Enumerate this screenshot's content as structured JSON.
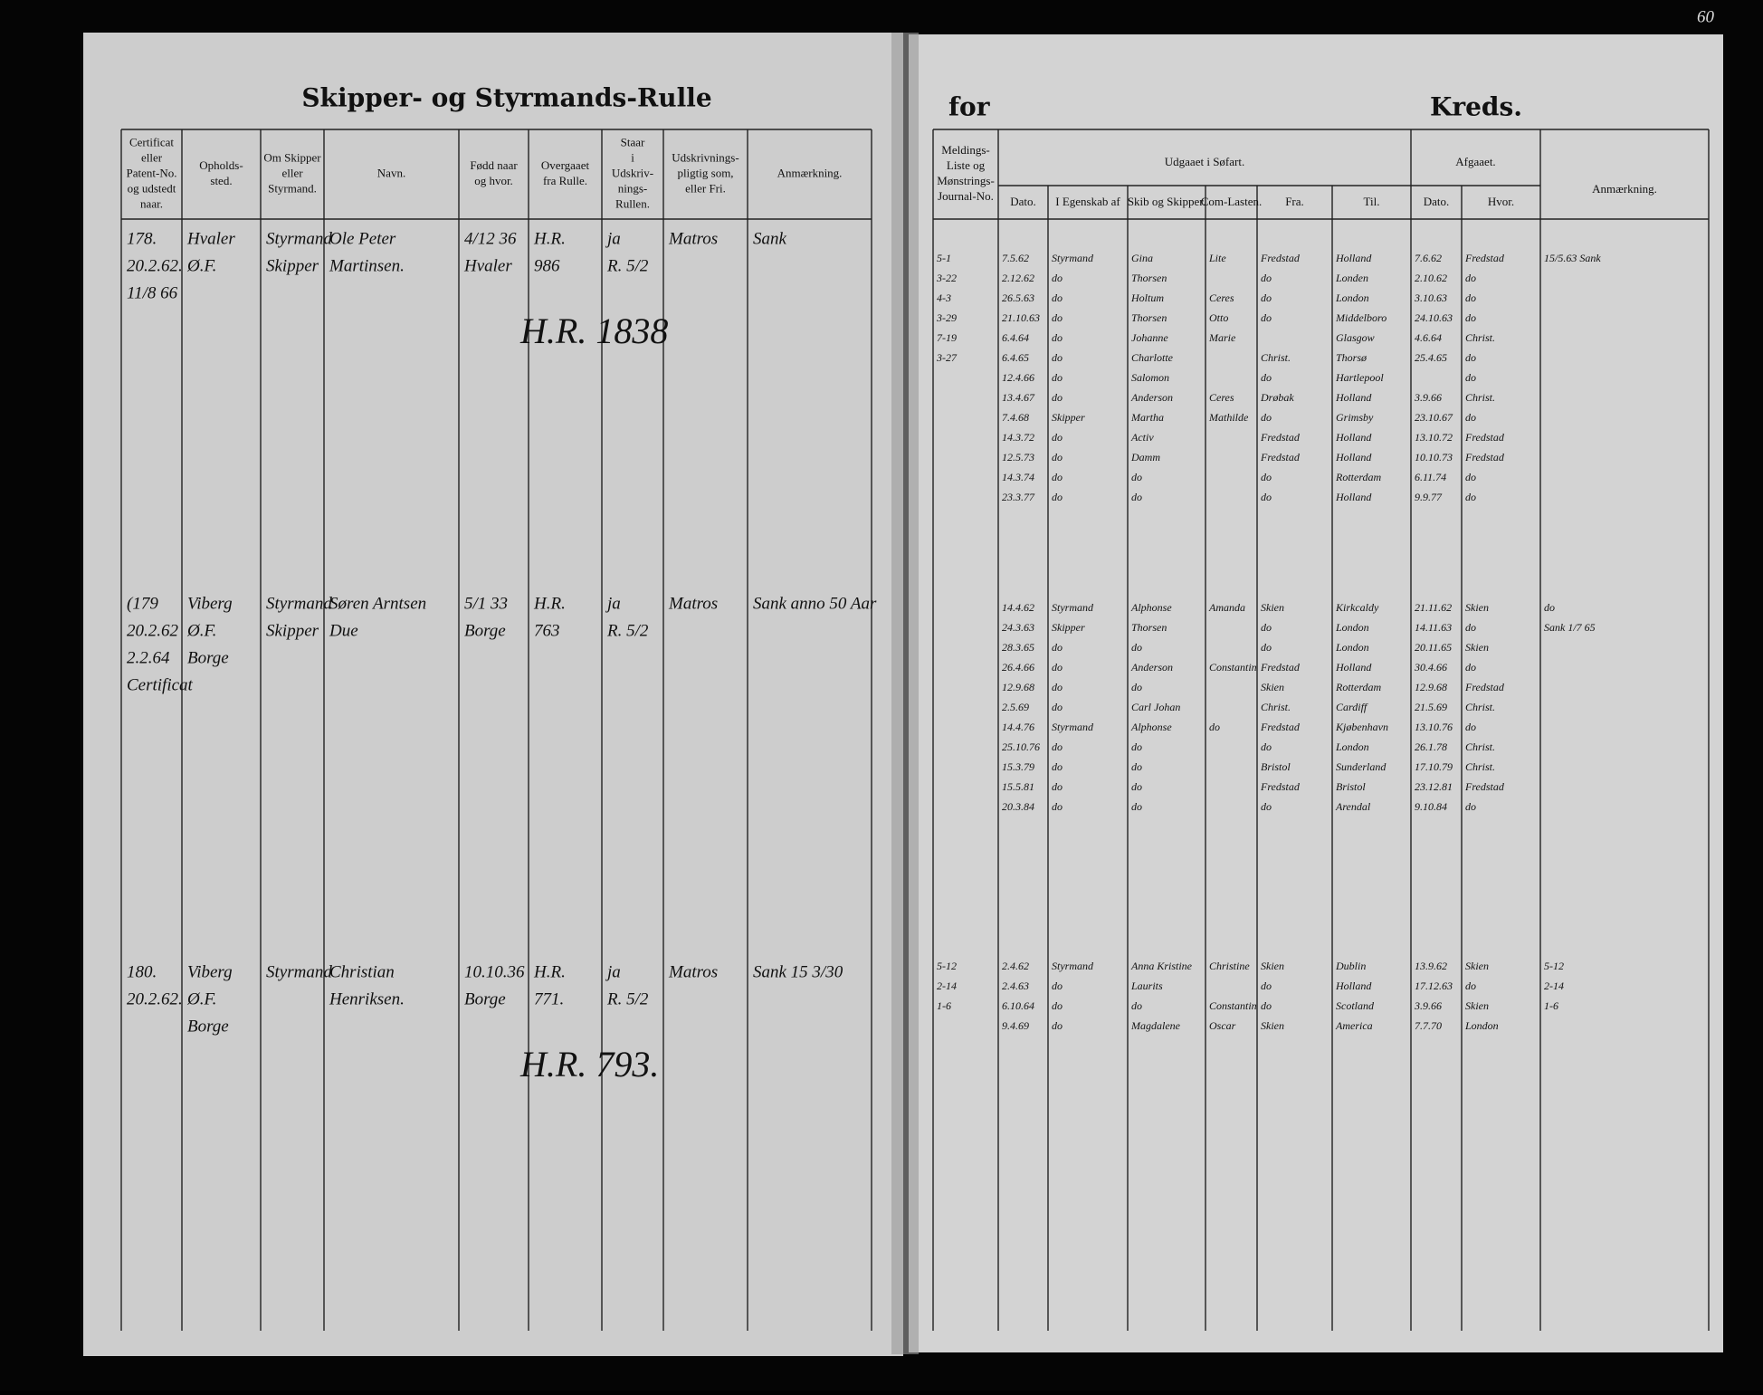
{
  "left_page": {
    "title": "Skipper- og Styrmands-Rulle",
    "columns": [
      [
        "Certificat",
        "eller",
        "Patent-No.",
        "og udstedt",
        "naar."
      ],
      [
        "Opholds-",
        "sted."
      ],
      [
        "Om Skipper",
        "eller",
        "Styrmand."
      ],
      [
        "Navn."
      ],
      [
        "Fødd naar",
        "og hvor."
      ],
      [
        "Overgaaet",
        "fra Rulle."
      ],
      [
        "Staar",
        "i",
        "Udskriv-",
        "nings-",
        "Rullen."
      ],
      [
        "Udskrivnings-",
        "pligtig som,",
        "eller Fri."
      ],
      [
        "Anmærkning."
      ]
    ],
    "entries": [
      {
        "cert": [
          "178.",
          "20.2.62.",
          "11/8 66"
        ],
        "opholdssted": [
          "Hvaler",
          "Ø.F."
        ],
        "stilling": [
          "Styrmand",
          "Skipper"
        ],
        "navn": [
          "Ole Peter",
          "Martinsen."
        ],
        "fodt": [
          "4/12 36",
          "Hvaler"
        ],
        "overgaaet": [
          "H.R.",
          "986"
        ],
        "udskrivning": [
          "ja",
          "R. 5/2"
        ],
        "pligtig": [
          "Matros"
        ],
        "anm": [
          "Sank"
        ],
        "stamp": "H.R. 1838"
      },
      {
        "cert": [
          "(179",
          "20.2.62",
          "2.2.64",
          "Certificat"
        ],
        "opholdssted": [
          "Viberg",
          "Ø.F.",
          "Borge"
        ],
        "stilling": [
          "Styrmand",
          "Skipper"
        ],
        "navn": [
          "Søren Arntsen",
          "Due"
        ],
        "fodt": [
          "5/1 33",
          "Borge"
        ],
        "overgaaet": [
          "H.R.",
          "763"
        ],
        "udskrivning": [
          "ja",
          "R. 5/2"
        ],
        "pligtig": [
          "Matros"
        ],
        "anm": [
          "Sank anno 50 Aar"
        ]
      },
      {
        "cert": [
          "180.",
          "20.2.62."
        ],
        "opholdssted": [
          "Viberg",
          "Ø.F.",
          "Borge"
        ],
        "stilling": [
          "Styrmand"
        ],
        "navn": [
          "Christian",
          "Henriksen."
        ],
        "fodt": [
          "10.10.36",
          "Borge"
        ],
        "overgaaet": [
          "H.R.",
          "771."
        ],
        "udskrivning": [
          "ja",
          "R. 5/2"
        ],
        "pligtig": [
          "Matros"
        ],
        "anm": [
          "Sank 15 3/30"
        ],
        "stamp": "H.R. 793."
      }
    ]
  },
  "right_page": {
    "title_for": "for",
    "title_kreds": "Kreds.",
    "page_number": "60",
    "journal_header": [
      "Meldings-",
      "Liste og",
      "Mønstrings-",
      "Journal-No."
    ],
    "udgaaet_header": "Udgaaet i Søfart.",
    "udgaaet_columns": [
      "Dato.",
      "I Egenskab af",
      "Skib og Skipper.",
      "Com-Lasten.",
      "Fra.",
      "Til."
    ],
    "afgaaet_header": "Afgaaet.",
    "afgaaet_columns": [
      "Dato.",
      "Hvor."
    ],
    "anm_header": "Anmærkning.",
    "entries": [
      {
        "rows": [
          {
            "journal": "5-1",
            "dato": "7.5.62",
            "egenskab": "Styrmand",
            "skib": "Gina",
            "lasten": "Lite",
            "fra": "Fredstad",
            "til": "Holland",
            "afg_dato": "7.6.62",
            "hvor": "Fredstad",
            "anm": "15/5.63 Sank"
          },
          {
            "journal": "3-22",
            "dato": "2.12.62",
            "egenskab": "do",
            "skib": "Thorsen",
            "fra": "do",
            "til": "Londen",
            "afg_dato": "2.10.62",
            "hvor": "do"
          },
          {
            "journal": "4-3",
            "dato": "26.5.63",
            "egenskab": "do",
            "skib": "Holtum",
            "lasten": "Ceres",
            "fra": "do",
            "til": "London",
            "afg_dato": "3.10.63",
            "hvor": "do"
          },
          {
            "journal": "3-29",
            "dato": "21.10.63",
            "egenskab": "do",
            "skib": "Thorsen",
            "lasten": "Otto",
            "fra": "do",
            "til": "Middelboro",
            "afg_dato": "24.10.63",
            "hvor": "do"
          },
          {
            "journal": "7-19",
            "dato": "6.4.64",
            "egenskab": "do",
            "skib": "Johanne",
            "lasten": "Marie",
            "til": "Glasgow",
            "afg_dato": "4.6.64",
            "hvor": "Christ."
          },
          {
            "journal": "3-27",
            "dato": "6.4.65",
            "egenskab": "do",
            "skib": "Charlotte",
            "fra": "Christ.",
            "til": "Thorsø",
            "afg_dato": "25.4.65",
            "hvor": "do"
          },
          {
            "dato": "12.4.66",
            "egenskab": "do",
            "skib": "Salomon",
            "fra": "do",
            "til": "Hartlepool",
            "hvor": "do"
          },
          {
            "dato": "13.4.67",
            "egenskab": "do",
            "skib": "Anderson",
            "lasten": "Ceres",
            "fra": "Drøbak",
            "til": "Holland",
            "afg_dato": "3.9.66",
            "hvor": "Christ."
          },
          {
            "dato": "7.4.68",
            "egenskab": "Skipper",
            "skib": "Martha",
            "lasten": "Mathilde",
            "fra": "do",
            "til": "Grimsby",
            "afg_dato": "23.10.67",
            "hvor": "do"
          },
          {
            "dato": "14.3.72",
            "egenskab": "do",
            "skib": "Activ",
            "fra": "Fredstad",
            "til": "Holland",
            "afg_dato": "13.10.72",
            "hvor": "Fredstad"
          },
          {
            "dato": "12.5.73",
            "egenskab": "do",
            "skib": "Damm",
            "fra": "Fredstad",
            "til": "Holland",
            "afg_dato": "10.10.73",
            "hvor": "Fredstad"
          },
          {
            "dato": "14.3.74",
            "egenskab": "do",
            "skib": "do",
            "fra": "do",
            "til": "Rotterdam",
            "afg_dato": "6.11.74",
            "hvor": "do"
          },
          {
            "dato": "23.3.77",
            "egenskab": "do",
            "skib": "do",
            "fra": "do",
            "til": "Holland",
            "afg_dato": "9.9.77",
            "hvor": "do"
          }
        ]
      },
      {
        "rows": [
          {
            "dato": "14.4.62",
            "egenskab": "Styrmand",
            "skib": "Alphonse",
            "lasten": "Amanda",
            "fra": "Skien",
            "til": "Kirkcaldy",
            "afg_dato": "21.11.62",
            "hvor": "Skien",
            "anm": "do"
          },
          {
            "dato": "24.3.63",
            "egenskab": "Skipper",
            "skib": "Thorsen",
            "fra": "do",
            "til": "London",
            "afg_dato": "14.11.63",
            "hvor": "do",
            "anm": "Sank 1/7 65"
          },
          {
            "dato": "28.3.65",
            "egenskab": "do",
            "skib": "do",
            "fra": "do",
            "til": "London",
            "afg_dato": "20.11.65",
            "hvor": "Skien"
          },
          {
            "dato": "26.4.66",
            "egenskab": "do",
            "skib": "Anderson",
            "lasten": "Constantin",
            "fra": "Fredstad",
            "til": "Holland",
            "afg_dato": "30.4.66",
            "hvor": "do"
          },
          {
            "dato": "12.9.68",
            "egenskab": "do",
            "skib": "do",
            "fra": "Skien",
            "til": "Rotterdam",
            "afg_dato": "12.9.68",
            "hvor": "Fredstad"
          },
          {
            "dato": "2.5.69",
            "egenskab": "do",
            "skib": "Carl Johan",
            "fra": "Christ.",
            "til": "Cardiff",
            "afg_dato": "21.5.69",
            "hvor": "Christ."
          },
          {
            "dato": "14.4.76",
            "egenskab": "Styrmand",
            "skib": "Alphonse",
            "lasten": "do",
            "fra": "Fredstad",
            "til": "Kjøbenhavn",
            "afg_dato": "13.10.76",
            "hvor": "do"
          },
          {
            "dato": "25.10.76",
            "egenskab": "do",
            "skib": "do",
            "fra": "do",
            "til": "London",
            "afg_dato": "26.1.78",
            "hvor": "Christ."
          },
          {
            "dato": "15.3.79",
            "egenskab": "do",
            "skib": "do",
            "fra": "Bristol",
            "til": "Sunderland",
            "afg_dato": "17.10.79",
            "hvor": "Christ."
          },
          {
            "dato": "15.5.81",
            "egenskab": "do",
            "skib": "do",
            "fra": "Fredstad",
            "til": "Bristol",
            "afg_dato": "23.12.81",
            "hvor": "Fredstad"
          },
          {
            "dato": "20.3.84",
            "egenskab": "do",
            "skib": "do",
            "fra": "do",
            "til": "Arendal",
            "afg_dato": "9.10.84",
            "hvor": "do"
          }
        ]
      },
      {
        "rows": [
          {
            "journal": "5-12",
            "dato": "2.4.62",
            "egenskab": "Styrmand",
            "skib": "Anna Kristine",
            "lasten": "Christine",
            "fra": "Skien",
            "til": "Dublin",
            "afg_dato": "13.9.62",
            "hvor": "Skien",
            "anm": "5-12"
          },
          {
            "journal": "2-14",
            "dato": "2.4.63",
            "egenskab": "do",
            "skib": "Laurits",
            "fra": "do",
            "til": "Holland",
            "afg_dato": "17.12.63",
            "hvor": "do",
            "anm": "2-14"
          },
          {
            "journal": "1-6",
            "dato": "6.10.64",
            "egenskab": "do",
            "skib": "do",
            "lasten": "Constantin",
            "fra": "do",
            "til": "Scotland",
            "afg_dato": "3.9.66",
            "hvor": "Skien",
            "anm": "1-6"
          },
          {
            "dato": "9.4.69",
            "egenskab": "do",
            "skib": "Magdalene",
            "lasten": "Oscar",
            "fra": "Skien",
            "til": "America",
            "afg_dato": "7.7.70",
            "hvor": "London"
          }
        ]
      }
    ]
  }
}
